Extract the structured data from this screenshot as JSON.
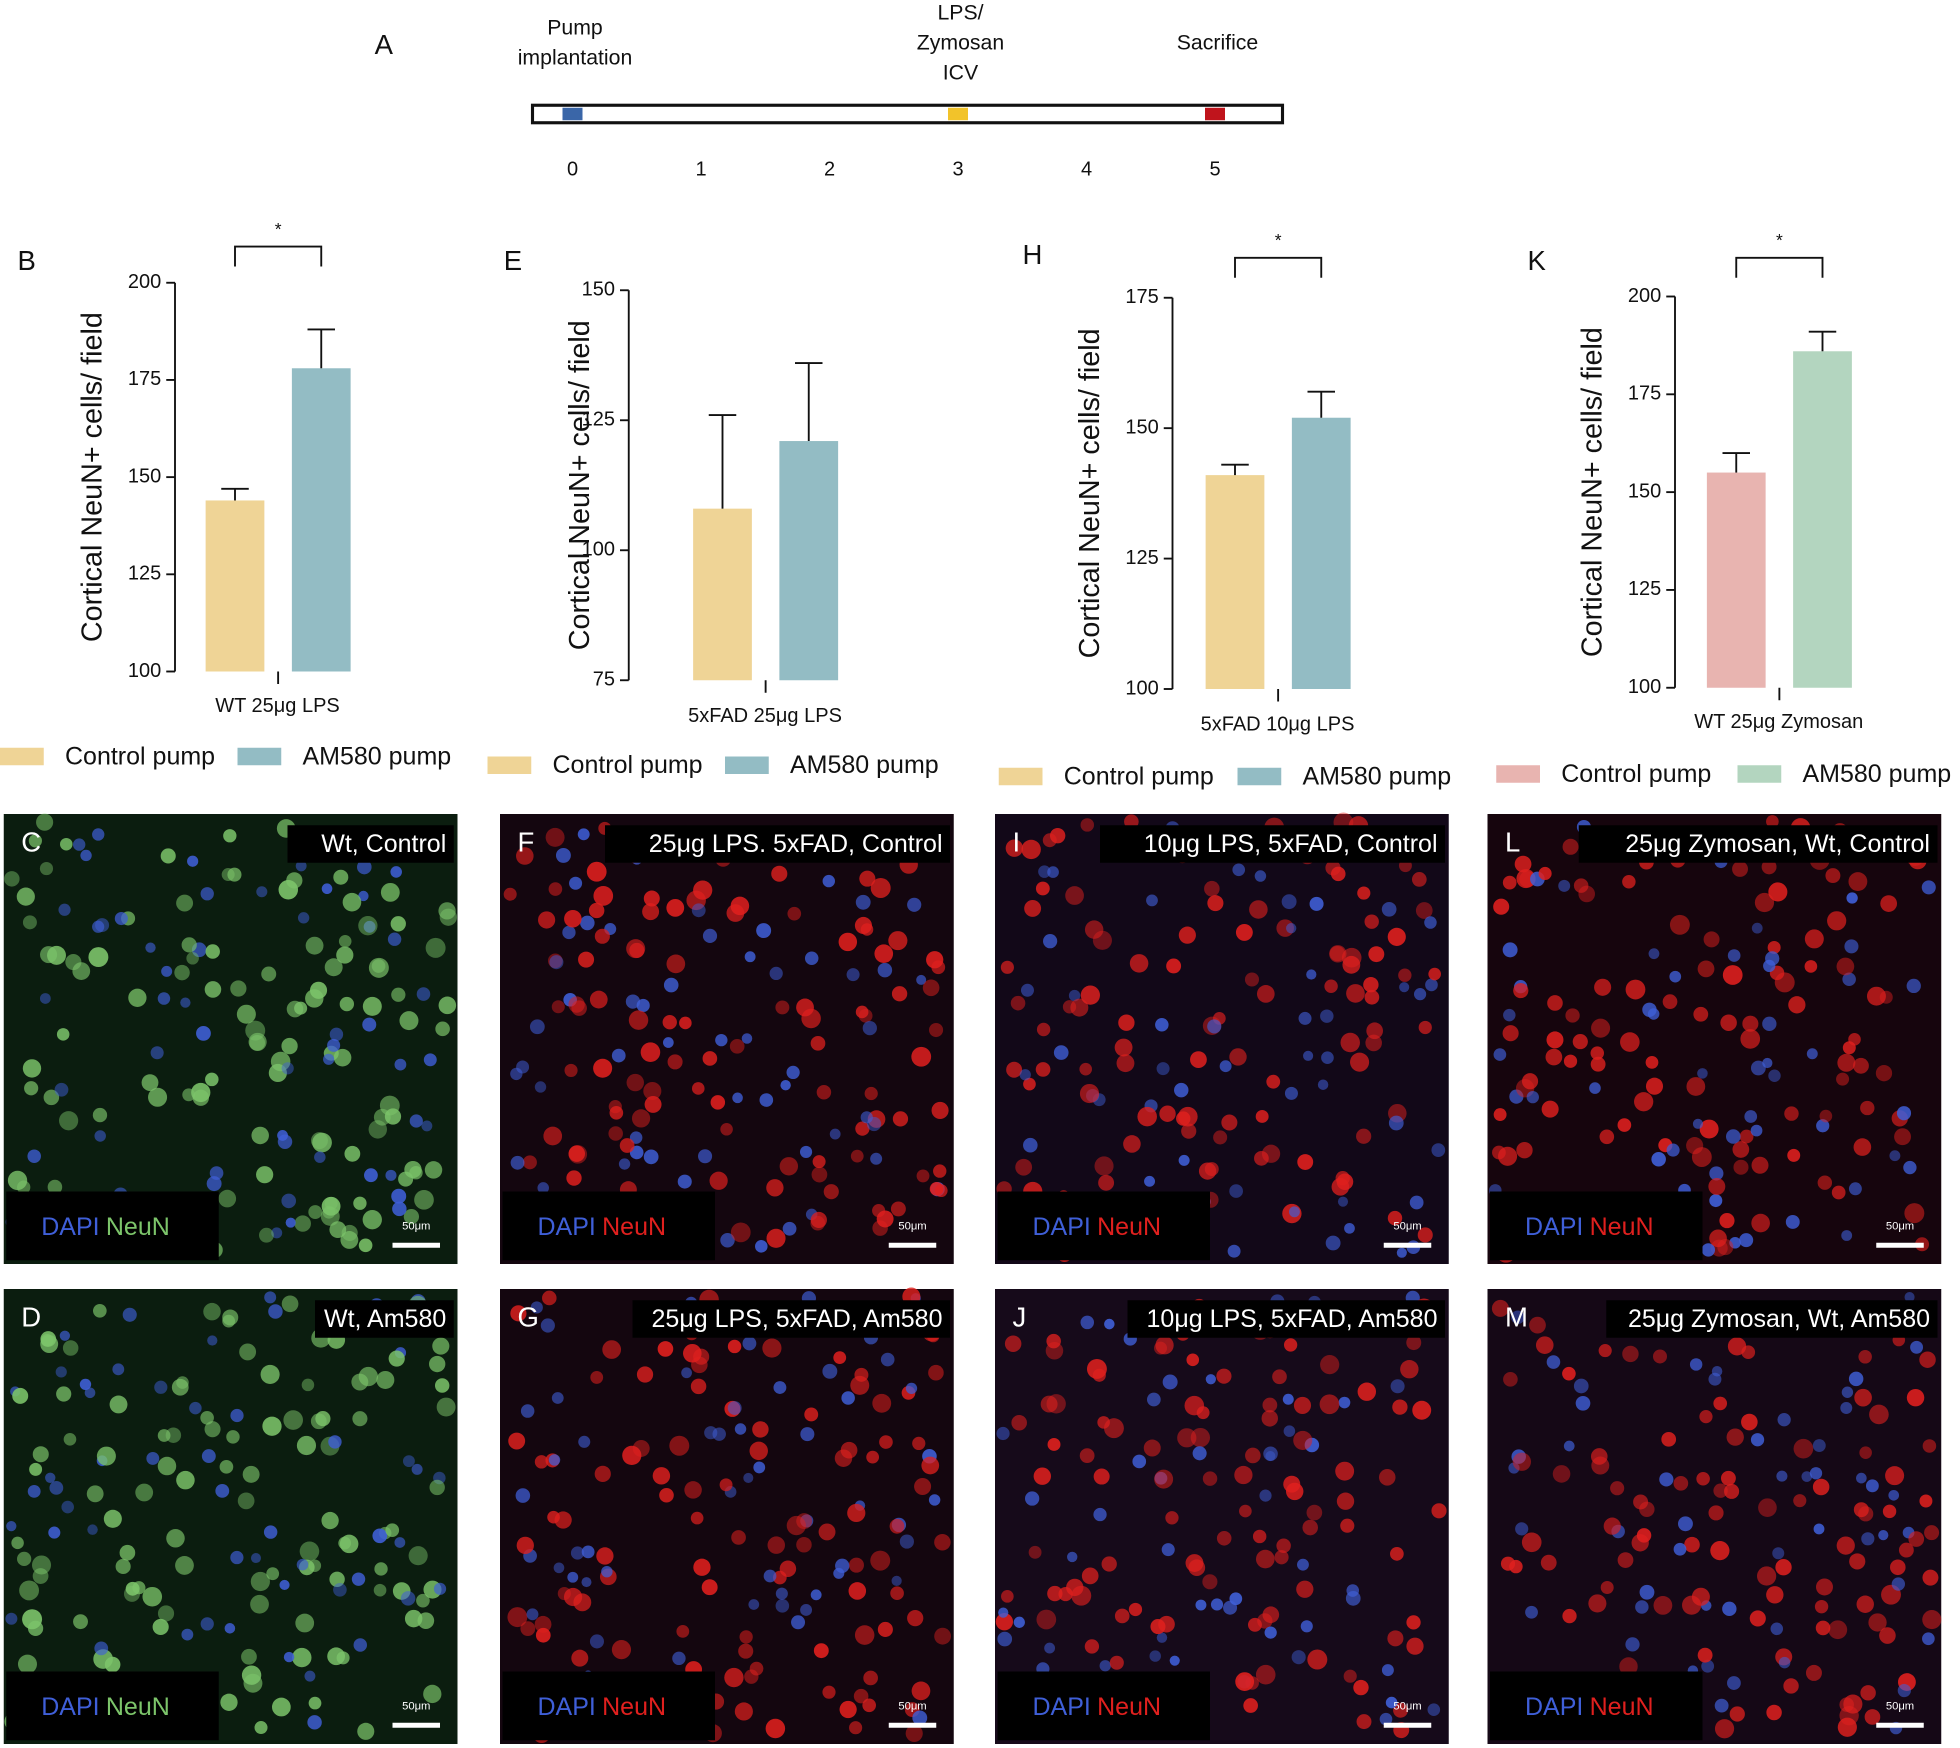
{
  "timeline": {
    "label": "A",
    "ticks": [
      0,
      1,
      2,
      3,
      4,
      5
    ],
    "events": [
      {
        "lines": [
          "Pump",
          "implantation"
        ],
        "day": 0,
        "color": "#3a66a8"
      },
      {
        "lines": [
          "LPS/",
          "Zymosan",
          "ICV"
        ],
        "day": 3,
        "color": "#f2c32a"
      },
      {
        "lines": [
          "Sacrifice"
        ],
        "day": 5,
        "color": "#c0141c"
      }
    ]
  },
  "chart_data": [
    {
      "type": "bar",
      "label": "B",
      "ylabel": "Cortical NeuN+ cells/ field",
      "categories": [
        "WT 25μg LPS"
      ],
      "ylim": [
        100,
        200
      ],
      "yticks": [
        100,
        125,
        150,
        175,
        200
      ],
      "significance": "*",
      "series": [
        {
          "name": "Control pump",
          "color": "#efd496",
          "values": [
            144
          ],
          "errors": [
            3
          ]
        },
        {
          "name": "AM580 pump",
          "color": "#93bcc4",
          "values": [
            178
          ],
          "errors": [
            10
          ]
        }
      ]
    },
    {
      "type": "bar",
      "label": "E",
      "ylabel": "Cortical NeuN+ cells/ field",
      "categories": [
        "5xFAD 25μg LPS"
      ],
      "ylim": [
        75,
        150
      ],
      "yticks": [
        75,
        100,
        125,
        150
      ],
      "series": [
        {
          "name": "Control pump",
          "color": "#efd496",
          "values": [
            108
          ],
          "errors": [
            18
          ]
        },
        {
          "name": "AM580 pump",
          "color": "#93bcc4",
          "values": [
            121
          ],
          "errors": [
            15
          ]
        }
      ]
    },
    {
      "type": "bar",
      "label": "H",
      "ylabel": "Cortical NeuN+ cells/ field",
      "categories": [
        "5xFAD 10μg LPS"
      ],
      "ylim": [
        100,
        175
      ],
      "yticks": [
        100,
        125,
        150,
        175
      ],
      "significance": "*",
      "series": [
        {
          "name": "Control pump",
          "color": "#efd496",
          "values": [
            141
          ],
          "errors": [
            2
          ]
        },
        {
          "name": "AM580 pump",
          "color": "#93bcc4",
          "values": [
            152
          ],
          "errors": [
            5
          ]
        }
      ]
    },
    {
      "type": "bar",
      "label": "K",
      "ylabel": "Cortical NeuN+ cells/ field",
      "categories": [
        "WT 25μg Zymosan"
      ],
      "ylim": [
        100,
        200
      ],
      "yticks": [
        100,
        125,
        150,
        175,
        200
      ],
      "significance": "*",
      "series": [
        {
          "name": "Control pump",
          "color": "#e8b4b0",
          "values": [
            155
          ],
          "errors": [
            5
          ]
        },
        {
          "name": "AM580 pump",
          "color": "#b3d5bf",
          "values": [
            186
          ],
          "errors": [
            5
          ]
        }
      ]
    }
  ],
  "images": {
    "scale_label": "50μm",
    "panels": [
      {
        "label": "C",
        "title": "Wt, Control",
        "stains": [
          {
            "text": "DAPI",
            "color": "#3f5fd8"
          },
          {
            "text": "NeuN",
            "color": "#7cc46a"
          }
        ]
      },
      {
        "label": "D",
        "title": "Wt, Am580",
        "stains": [
          {
            "text": "DAPI",
            "color": "#3f5fd8"
          },
          {
            "text": "NeuN",
            "color": "#7cc46a"
          }
        ]
      },
      {
        "label": "F",
        "title": "25μg LPS. 5xFAD, Control",
        "stains": [
          {
            "text": "DAPI",
            "color": "#3f5fd8"
          },
          {
            "text": "NeuN",
            "color": "#e0201e"
          }
        ]
      },
      {
        "label": "G",
        "title": "25μg LPS, 5xFAD, Am580",
        "stains": [
          {
            "text": "DAPI",
            "color": "#3f5fd8"
          },
          {
            "text": "NeuN",
            "color": "#e0201e"
          }
        ]
      },
      {
        "label": "I",
        "title": "10μg LPS, 5xFAD, Control",
        "stains": [
          {
            "text": "DAPI",
            "color": "#3f5fd8"
          },
          {
            "text": "NeuN",
            "color": "#e0201e"
          }
        ]
      },
      {
        "label": "J",
        "title": "10μg LPS, 5xFAD, Am580",
        "stains": [
          {
            "text": "DAPI",
            "color": "#3f5fd8"
          },
          {
            "text": "NeuN",
            "color": "#e0201e"
          }
        ]
      },
      {
        "label": "L",
        "title": "25μg Zymosan, Wt, Control",
        "stains": [
          {
            "text": "DAPI",
            "color": "#3f5fd8"
          },
          {
            "text": "NeuN",
            "color": "#e0201e"
          }
        ]
      },
      {
        "label": "M",
        "title": "25μg Zymosan, Wt, Am580",
        "stains": [
          {
            "text": "DAPI",
            "color": "#3f5fd8"
          },
          {
            "text": "NeuN",
            "color": "#e0201e"
          }
        ]
      }
    ]
  }
}
